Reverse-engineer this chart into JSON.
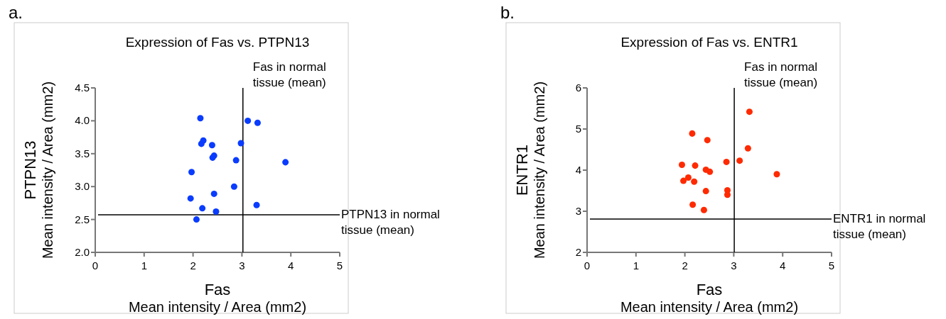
{
  "chart_data": [
    {
      "type": "scatter",
      "title": "Expression of Fas vs. PTPN13",
      "xlabel": "Fas\nMean intensity / Area (mm2)",
      "ylabel": "PTPN13\nMean intensity / Area (mm2)",
      "annotations": [
        "a."
      ],
      "x": [
        2.15,
        3.12,
        3.32,
        2.17,
        2.21,
        2.39,
        2.98,
        2.43,
        2.4,
        2.88,
        3.89,
        1.97,
        2.84,
        2.43,
        1.95,
        2.19,
        3.3,
        2.47,
        2.07
      ],
      "series": [
        {
          "color": "#0a3cff",
          "values": [
            4.04,
            4.0,
            3.97,
            3.65,
            3.7,
            3.63,
            3.66,
            3.47,
            3.44,
            3.4,
            3.37,
            3.22,
            3.0,
            2.89,
            2.82,
            2.67,
            2.72,
            2.62,
            2.5
          ]
        }
      ],
      "xlim": [
        0,
        5
      ],
      "xticks": [
        0,
        1,
        2,
        3,
        4,
        5
      ],
      "ylim": [
        2.0,
        4.5
      ],
      "yticks": [
        {
          "value": 2,
          "label": "2.0"
        },
        2.5,
        {
          "value": 3,
          "label": "3.0"
        },
        3.5,
        {
          "value": 4,
          "label": "4.0"
        },
        4.5
      ],
      "ref_lines": [
        {
          "axis": "x",
          "value": 3.02,
          "label": "Fas in normal tissue (mean)",
          "color": "#000000"
        },
        {
          "axis": "y",
          "value": 2.57,
          "label": "PTPN13 in normal tissue (mean)",
          "color": "#000000"
        }
      ],
      "marker": "circle",
      "grid": false
    },
    {
      "type": "scatter",
      "title": "Expression of Fas vs. ENTR1",
      "xlabel": "Fas\nMean intensity / Area (mm2)",
      "ylabel": "ENTR1\nMean intensity / Area (mm2)",
      "annotations": [
        "b."
      ],
      "x": [
        3.32,
        2.15,
        2.46,
        3.29,
        1.94,
        2.21,
        2.85,
        3.12,
        2.43,
        2.51,
        3.88,
        2.07,
        1.97,
        2.19,
        2.43,
        2.87,
        2.87,
        2.16,
        2.39
      ],
      "series": [
        {
          "color": "#ff2a00",
          "values": [
            5.42,
            4.89,
            4.73,
            4.53,
            4.13,
            4.11,
            4.2,
            4.23,
            4.01,
            3.96,
            3.9,
            3.82,
            3.74,
            3.72,
            3.49,
            3.51,
            3.4,
            3.16,
            3.03
          ]
        }
      ],
      "xlim": [
        0,
        5
      ],
      "xticks": [
        0,
        1,
        2,
        3,
        4,
        5
      ],
      "ylim": [
        2,
        6
      ],
      "yticks": [
        2,
        3,
        4,
        5,
        6
      ],
      "ref_lines": [
        {
          "axis": "x",
          "value": 3.01,
          "label": "Fas in normal tissue (mean)",
          "color": "#000000"
        },
        {
          "axis": "y",
          "value": 2.81,
          "label": "ENTR1 in normal tissue (mean)",
          "color": "#000000"
        }
      ],
      "marker": "circle",
      "grid": false
    }
  ]
}
